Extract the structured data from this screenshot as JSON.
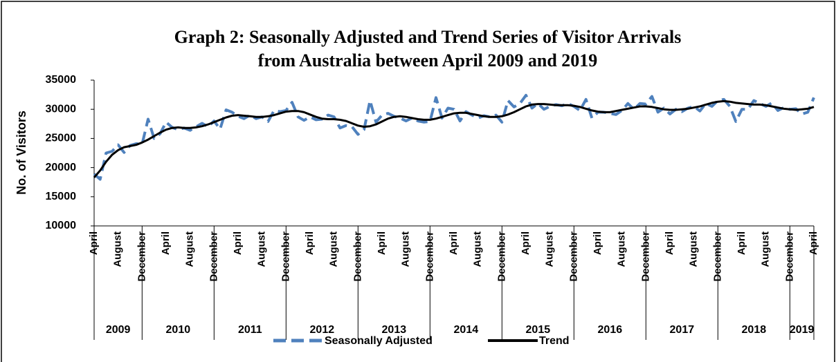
{
  "chart_data": {
    "type": "line",
    "title_lines": [
      "Graph 2: Seasonally Adjusted and Trend Series of Visitor Arrivals",
      "from Australia between April 2009 and 2019"
    ],
    "ylabel": "No. of Visitors",
    "ylim": [
      10000,
      35000
    ],
    "yticks": [
      10000,
      15000,
      20000,
      25000,
      30000,
      35000
    ],
    "grid": false,
    "categories": [
      "April",
      null,
      null,
      null,
      "August",
      null,
      null,
      null,
      "December",
      null,
      null,
      null,
      "April",
      null,
      null,
      null,
      "August",
      null,
      null,
      null,
      "December",
      null,
      null,
      null,
      "April",
      null,
      null,
      null,
      "August",
      null,
      null,
      null,
      "December",
      null,
      null,
      null,
      "April",
      null,
      null,
      null,
      "August",
      null,
      null,
      null,
      "December",
      null,
      null,
      null,
      "April",
      null,
      null,
      null,
      "August",
      null,
      null,
      null,
      "December",
      null,
      null,
      null,
      "April",
      null,
      null,
      null,
      "August",
      null,
      null,
      null,
      "December",
      null,
      null,
      null,
      "April",
      null,
      null,
      null,
      "August",
      null,
      null,
      null,
      "December",
      null,
      null,
      null,
      "April",
      null,
      null,
      null,
      "August",
      null,
      null,
      null,
      "December",
      null,
      null,
      null,
      "April",
      null,
      null,
      null,
      "August",
      null,
      null,
      null,
      "December",
      null,
      null,
      null,
      "April",
      null,
      null,
      null,
      "August",
      null,
      null,
      null,
      "December",
      null,
      null,
      null,
      "April"
    ],
    "year_groups": [
      "2009",
      "2010",
      "2011",
      "2012",
      "2013",
      "2014",
      "2015",
      "2016",
      "2017",
      "2018",
      "2019"
    ],
    "legend": "bottom",
    "series": [
      {
        "name": "Seasonally Adjusted",
        "color": "#4f81bd",
        "dashed": true,
        "values": [
          18900,
          18000,
          22500,
          22800,
          23900,
          22600,
          23800,
          24100,
          24000,
          28300,
          25000,
          25800,
          27800,
          26900,
          26500,
          26800,
          26400,
          27000,
          27600,
          27000,
          28000,
          26600,
          29900,
          29500,
          28800,
          28400,
          29000,
          28400,
          28700,
          27900,
          29800,
          29600,
          29800,
          31200,
          28700,
          28100,
          28700,
          28200,
          28300,
          29000,
          28700,
          26800,
          27200,
          27000,
          25700,
          26500,
          31500,
          27800,
          29000,
          29300,
          28800,
          28500,
          28000,
          28500,
          28000,
          27800,
          27900,
          32000,
          28500,
          30200,
          30000,
          28000,
          29600,
          29000,
          28500,
          28900,
          28700,
          29000,
          27800,
          31500,
          30400,
          31000,
          32400,
          30200,
          31000,
          30000,
          30500,
          30800,
          30600,
          31000,
          30500,
          29800,
          31700,
          28500,
          29500,
          29500,
          29300,
          29100,
          29800,
          31000,
          30000,
          31000,
          30900,
          32200,
          29500,
          30200,
          29200,
          30000,
          29600,
          30200,
          30500,
          29700,
          31000,
          30500,
          31500,
          31700,
          30500,
          27900,
          30000,
          30000,
          31500,
          31000,
          30500,
          31100,
          29800,
          30300,
          30000,
          30100,
          29200,
          29500,
          32000
        ]
      },
      {
        "name": "Trend",
        "color": "#000000",
        "dashed": false,
        "values": [
          18300,
          19500,
          21000,
          22200,
          23000,
          23500,
          23700,
          23900,
          24300,
          24800,
          25400,
          26000,
          26500,
          26800,
          26900,
          26800,
          26800,
          26900,
          27100,
          27400,
          27800,
          28200,
          28600,
          28900,
          29000,
          28900,
          28800,
          28700,
          28700,
          28800,
          29000,
          29300,
          29600,
          29700,
          29700,
          29500,
          29100,
          28700,
          28400,
          28300,
          28300,
          28200,
          28000,
          27600,
          27200,
          27000,
          27100,
          27400,
          27900,
          28400,
          28700,
          28800,
          28700,
          28500,
          28300,
          28200,
          28200,
          28400,
          28700,
          29000,
          29300,
          29400,
          29400,
          29200,
          29000,
          28800,
          28700,
          28700,
          28800,
          29100,
          29500,
          30000,
          30500,
          30800,
          30900,
          30900,
          30800,
          30700,
          30700,
          30700,
          30600,
          30400,
          30100,
          29800,
          29600,
          29500,
          29500,
          29700,
          29900,
          30100,
          30300,
          30500,
          30500,
          30400,
          30200,
          30000,
          29900,
          29900,
          30000,
          30100,
          30300,
          30500,
          30800,
          31100,
          31300,
          31400,
          31300,
          31100,
          31000,
          30900,
          30800,
          30800,
          30700,
          30500,
          30300,
          30100,
          30000,
          29900,
          30000,
          30100,
          30400
        ]
      }
    ]
  }
}
